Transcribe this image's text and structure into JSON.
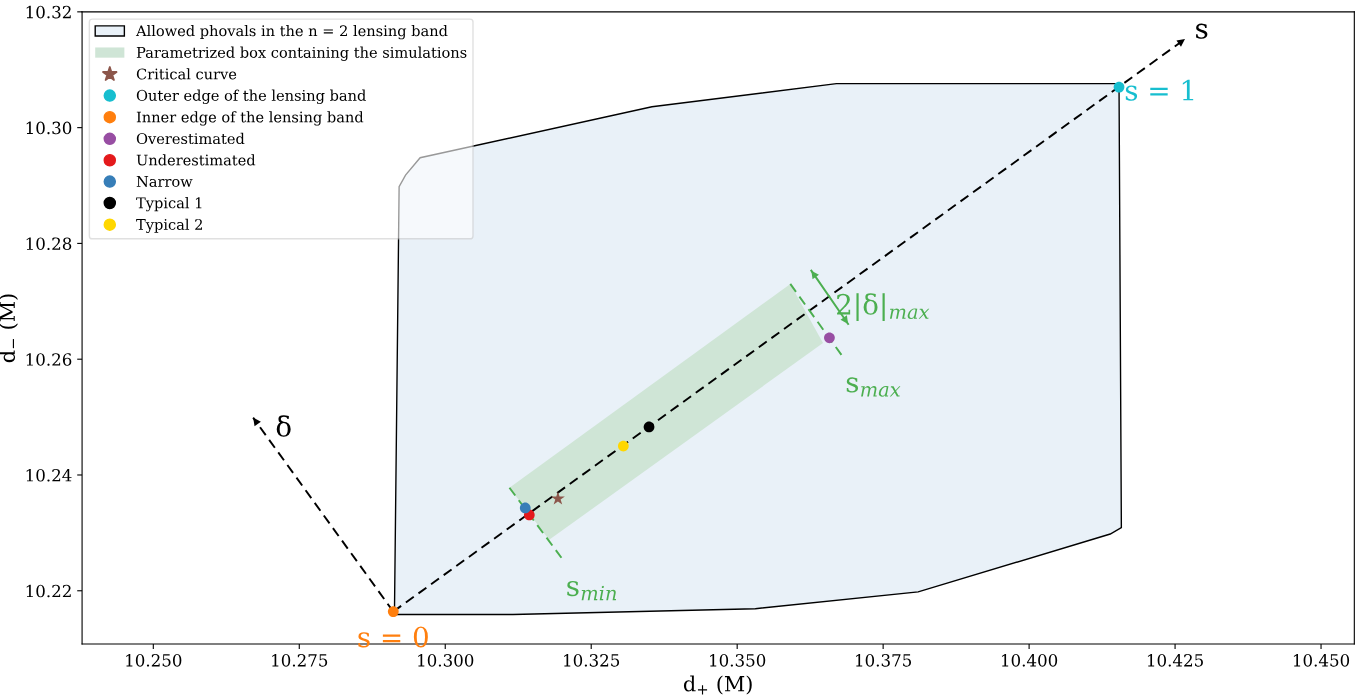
{
  "chart_data": {
    "type": "scatter",
    "xlabel": "d$_{+}$ (M)",
    "ylabel": "d$_{−}$ (M)",
    "xlim": [
      10.2378,
      10.4557
    ],
    "ylim": [
      10.2108,
      10.32
    ],
    "xticks": [
      {
        "value": 10.25,
        "label": "10.250"
      },
      {
        "value": 10.275,
        "label": "10.275"
      },
      {
        "value": 10.3,
        "label": "10.300"
      },
      {
        "value": 10.325,
        "label": "10.325"
      },
      {
        "value": 10.35,
        "label": "10.350"
      },
      {
        "value": 10.375,
        "label": "10.375"
      },
      {
        "value": 10.4,
        "label": "10.400"
      },
      {
        "value": 10.425,
        "label": "10.425"
      },
      {
        "value": 10.45,
        "label": "10.450"
      }
    ],
    "yticks": [
      {
        "value": 10.22,
        "label": "10.22"
      },
      {
        "value": 10.24,
        "label": "10.24"
      },
      {
        "value": 10.26,
        "label": "10.26"
      },
      {
        "value": 10.28,
        "label": "10.28"
      },
      {
        "value": 10.3,
        "label": "10.30"
      },
      {
        "value": 10.32,
        "label": "10.32"
      }
    ],
    "grid": false,
    "legend": "top left",
    "series": [
      {
        "type": "area",
        "name": "Allowed phovals in the n = 2 lensing band",
        "color": "#e9f1f8",
        "line_style": "solid",
        "x": [
          10.2913,
          10.3116,
          10.3531,
          10.381,
          10.4139,
          10.4158,
          10.4154,
          10.367,
          10.3354,
          10.2957,
          10.2932,
          10.2921,
          10.2913
        ],
        "values": [
          10.2159,
          10.2159,
          10.2169,
          10.2198,
          10.2298,
          10.2309,
          10.3076,
          10.3076,
          10.3036,
          10.2948,
          10.2918,
          10.2898,
          10.2159
        ]
      },
      {
        "type": "area",
        "name": "Parametrized box containing the simulations",
        "color": "#cfe5d6",
        "x": [
          10.311,
          10.3178,
          10.3647,
          10.3591,
          10.311
        ],
        "values": [
          10.2378,
          10.2288,
          10.2628,
          10.273,
          10.2378
        ]
      },
      {
        "type": "line",
        "color": "#000000",
        "line_style": "dashed",
        "x": [
          10.2911,
          10.4267
        ],
        "values": [
          10.2164,
          10.3153
        ]
      },
      {
        "type": "line",
        "color": "#000000",
        "line_style": "dashed",
        "x": [
          10.2911,
          10.2671
        ],
        "values": [
          10.2164,
          10.2499
        ]
      },
      {
        "type": "line",
        "color": "#4caf50",
        "line_style": "dashed",
        "x": [
          10.311,
          10.3199
        ],
        "values": [
          10.2378,
          10.2257
        ]
      },
      {
        "type": "line",
        "color": "#4caf50",
        "line_style": "dashed",
        "x": [
          10.3591,
          10.3681
        ],
        "values": [
          10.273,
          10.2604
        ]
      },
      {
        "type": "line",
        "color": "#4caf50",
        "line_style": "solid",
        "x": [
          10.3627,
          10.369
        ],
        "values": [
          10.2753,
          10.2661
        ]
      },
      {
        "name": "Critical curve",
        "color": "#8c564b",
        "marker": "star",
        "x": [
          10.3193
        ],
        "values": [
          10.2359
        ]
      },
      {
        "name": "Outer edge of the lensing band",
        "color": "#17becf",
        "marker": "circle",
        "x": [
          10.4154
        ],
        "values": [
          10.307
        ]
      },
      {
        "name": "Inner edge of the lensing band",
        "color": "#ff7f0e",
        "marker": "circle",
        "x": [
          10.2911
        ],
        "values": [
          10.2164
        ]
      },
      {
        "name": "Overestimated",
        "color": "#984ea3",
        "marker": "circle",
        "x": [
          10.3658
        ],
        "values": [
          10.2637
        ]
      },
      {
        "name": "Underestimated",
        "color": "#e41a1c",
        "marker": "circle",
        "x": [
          10.3144
        ],
        "values": [
          10.2331
        ]
      },
      {
        "name": "Narrow",
        "color": "#377eb8",
        "marker": "circle",
        "x": [
          10.3137
        ],
        "values": [
          10.2343
        ]
      },
      {
        "name": "Typical 1",
        "color": "#000000",
        "marker": "circle",
        "x": [
          10.3349
        ],
        "values": [
          10.2483
        ]
      },
      {
        "name": "Typical 2",
        "color": "#ffd700",
        "marker": "circle",
        "x": [
          10.3305
        ],
        "values": [
          10.245
        ]
      }
    ],
    "annotations": [
      {
        "text": "s",
        "x": 10.4267,
        "y": 10.3153
      },
      {
        "text": "s = 1",
        "x": 10.4154,
        "y": 10.307
      },
      {
        "text": "s = 0",
        "x": 10.2911,
        "y": 10.2164
      },
      {
        "text": "δ",
        "x": 10.2671,
        "y": 10.2499
      },
      {
        "text": "s$_{max}$",
        "x": 10.3681,
        "y": 10.2604
      },
      {
        "text": "s$_{min}$",
        "x": 10.3199,
        "y": 10.2257
      },
      {
        "text": "2|δ|$_{max}$",
        "x": 10.369,
        "y": 10.2661
      }
    ]
  }
}
